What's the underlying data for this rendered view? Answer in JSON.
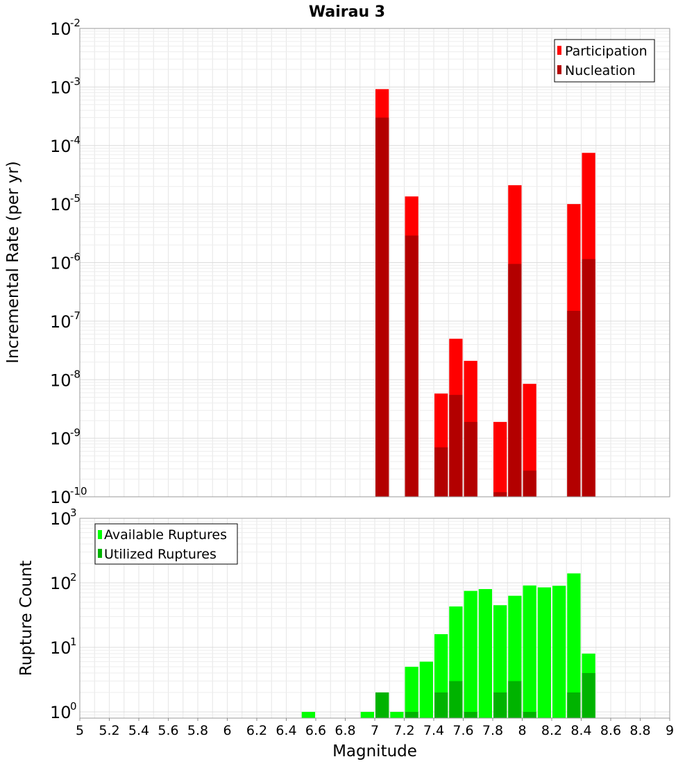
{
  "title": "Wairau 3",
  "chart_data": [
    {
      "type": "bar",
      "ylabel": "Incremental Rate (per yr)",
      "yscale": "log",
      "ylim": [
        1e-10,
        0.01
      ],
      "xlim": [
        5,
        9
      ],
      "grid": true,
      "legend_position": "top-right",
      "y_tick_labels": [
        {
          "base": "10",
          "exp": "-2"
        },
        {
          "base": "10",
          "exp": "-3"
        },
        {
          "base": "10",
          "exp": "-4"
        },
        {
          "base": "10",
          "exp": "-5"
        },
        {
          "base": "10",
          "exp": "-6"
        },
        {
          "base": "10",
          "exp": "-7"
        },
        {
          "base": "10",
          "exp": "-8"
        },
        {
          "base": "10",
          "exp": "-9"
        },
        {
          "base": "10",
          "exp": "-10"
        }
      ],
      "series": [
        {
          "name": "Participation",
          "color": "#ff0000",
          "points": [
            {
              "x": 7.05,
              "y": 0.00092
            },
            {
              "x": 7.25,
              "y": 1.35e-05
            },
            {
              "x": 7.45,
              "y": 5.8e-09
            },
            {
              "x": 7.55,
              "y": 5e-08
            },
            {
              "x": 7.65,
              "y": 2.1e-08
            },
            {
              "x": 7.85,
              "y": 1.9e-09
            },
            {
              "x": 7.95,
              "y": 2.1e-05
            },
            {
              "x": 8.05,
              "y": 8.5e-09
            },
            {
              "x": 8.35,
              "y": 1e-05
            },
            {
              "x": 8.45,
              "y": 7.5e-05
            }
          ]
        },
        {
          "name": "Nucleation",
          "color": "#b30000",
          "points": [
            {
              "x": 7.05,
              "y": 0.0003
            },
            {
              "x": 7.25,
              "y": 2.9e-06
            },
            {
              "x": 7.45,
              "y": 7e-10
            },
            {
              "x": 7.55,
              "y": 5.5e-09
            },
            {
              "x": 7.65,
              "y": 1.9e-09
            },
            {
              "x": 7.85,
              "y": 1.2e-10
            },
            {
              "x": 7.95,
              "y": 9.5e-07
            },
            {
              "x": 8.05,
              "y": 2.8e-10
            },
            {
              "x": 8.35,
              "y": 1.5e-07
            },
            {
              "x": 8.45,
              "y": 1.15e-06
            }
          ]
        }
      ]
    },
    {
      "type": "bar",
      "ylabel": "Rupture Count",
      "xlabel": "Magnitude",
      "yscale": "log",
      "ylim": [
        0.8,
        1000
      ],
      "xlim": [
        5,
        9
      ],
      "grid": true,
      "legend_position": "top-left",
      "y_tick_labels": [
        {
          "base": "10",
          "exp": "3"
        },
        {
          "base": "10",
          "exp": "2"
        },
        {
          "base": "10",
          "exp": "1"
        },
        {
          "base": "10",
          "exp": "0"
        }
      ],
      "x_tick_labels": [
        "5",
        "5.2",
        "5.4",
        "5.6",
        "5.8",
        "6",
        "6.2",
        "6.4",
        "6.6",
        "6.8",
        "7",
        "7.2",
        "7.4",
        "7.6",
        "7.8",
        "8",
        "8.2",
        "8.4",
        "8.6",
        "8.8",
        "9"
      ],
      "series": [
        {
          "name": "Available Ruptures",
          "color": "#00ff00",
          "points": [
            {
              "x": 6.55,
              "y": 1
            },
            {
              "x": 6.95,
              "y": 1
            },
            {
              "x": 7.05,
              "y": 2
            },
            {
              "x": 7.15,
              "y": 1
            },
            {
              "x": 7.25,
              "y": 5
            },
            {
              "x": 7.35,
              "y": 6
            },
            {
              "x": 7.45,
              "y": 16
            },
            {
              "x": 7.55,
              "y": 43
            },
            {
              "x": 7.65,
              "y": 75
            },
            {
              "x": 7.75,
              "y": 80
            },
            {
              "x": 7.85,
              "y": 45
            },
            {
              "x": 7.95,
              "y": 63
            },
            {
              "x": 8.05,
              "y": 91
            },
            {
              "x": 8.15,
              "y": 85
            },
            {
              "x": 8.25,
              "y": 90
            },
            {
              "x": 8.35,
              "y": 140
            },
            {
              "x": 8.45,
              "y": 8
            }
          ]
        },
        {
          "name": "Utilized Ruptures",
          "color": "#00b300",
          "points": [
            {
              "x": 7.05,
              "y": 2
            },
            {
              "x": 7.25,
              "y": 1
            },
            {
              "x": 7.45,
              "y": 2
            },
            {
              "x": 7.55,
              "y": 3
            },
            {
              "x": 7.65,
              "y": 1
            },
            {
              "x": 7.85,
              "y": 2
            },
            {
              "x": 7.95,
              "y": 3
            },
            {
              "x": 8.05,
              "y": 1
            },
            {
              "x": 8.35,
              "y": 2
            },
            {
              "x": 8.45,
              "y": 4
            }
          ]
        }
      ]
    }
  ]
}
